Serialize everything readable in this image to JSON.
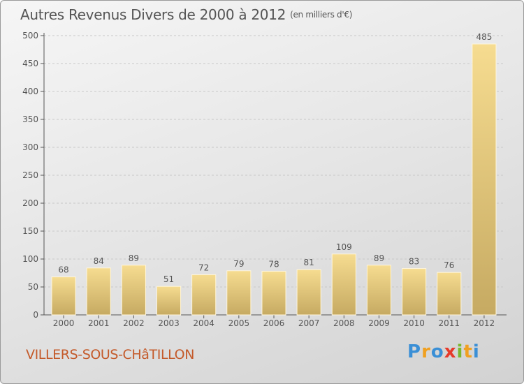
{
  "title": "Autres Revenus Divers de 2000 à 2012",
  "subtitle": "(en milliers d'€)",
  "commune": "VILLERS-SOUS-CHâTILLON",
  "logo": {
    "letters": [
      "P",
      "r",
      "o",
      "x",
      "i",
      "t",
      "i"
    ],
    "colors": [
      "#3a8fd6",
      "#f0a020",
      "#3a8fd6",
      "#e63a2a",
      "#7ab82e",
      "#f0a020",
      "#3a8fd6"
    ]
  },
  "colors": {
    "bar_top": "#f6dc90",
    "bar_bottom": "#c6aa62",
    "text": "#555555",
    "commune": "#c45a2a"
  },
  "chart_data": {
    "type": "bar",
    "categories": [
      "2000",
      "2001",
      "2002",
      "2003",
      "2004",
      "2005",
      "2006",
      "2007",
      "2008",
      "2009",
      "2010",
      "2011",
      "2012"
    ],
    "values": [
      68,
      84,
      89,
      51,
      72,
      79,
      78,
      81,
      109,
      89,
      83,
      76,
      485
    ],
    "yticks": [
      0,
      50,
      100,
      150,
      200,
      250,
      300,
      350,
      400,
      450,
      500
    ],
    "ylim": [
      0,
      500
    ],
    "grid": true,
    "legend": "none"
  }
}
